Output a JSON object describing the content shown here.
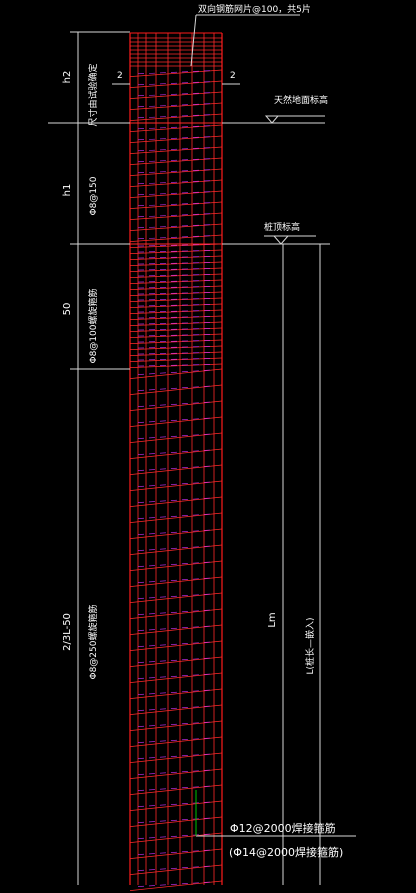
{
  "drawing": {
    "colors": {
      "background": "#000000",
      "pile_outline": "#ff1a1a",
      "rebar": "#ff2a2a",
      "spiral": "#cc33ff",
      "annotation": "#ffffff",
      "dimension": "#d8d8d8",
      "leader": "#00c400"
    },
    "top_note": "双向钢筋网片@100，共5片",
    "section_marks": [
      "2",
      "2"
    ],
    "natural_ground": "天然地面标高",
    "pile_top": "桩顶标高",
    "segments": [
      {
        "dim": "h2",
        "note": "尺寸由试验确定"
      },
      {
        "dim": "h1",
        "note": "Φ8@150"
      },
      {
        "dim": "50",
        "note": "Φ8@100螺旋箍筋"
      },
      {
        "dim": "2/3L-50",
        "note": "Φ8@250螺旋箍筋"
      }
    ],
    "lm": "Lm",
    "l_total": "L(桩长—嵌入)",
    "callout_1": "Φ12@2000焊接箍筋",
    "callout_2": "(Φ14@2000焊接箍筋)"
  }
}
